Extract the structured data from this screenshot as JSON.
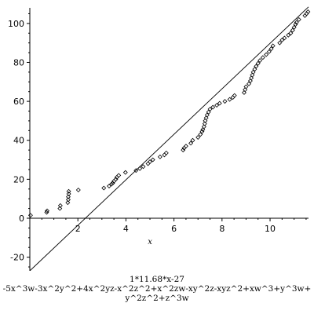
{
  "chart_data": {
    "type": "scatter",
    "xlabel": "x",
    "ylabel": "",
    "xlim": [
      0,
      11.6
    ],
    "ylim": [
      -27,
      108
    ],
    "x_ticks": [
      2,
      4,
      6,
      8,
      10
    ],
    "y_ticks": [
      -20,
      0,
      20,
      40,
      60,
      80,
      100
    ],
    "grid": false,
    "fit_line": {
      "slope": 11.68,
      "intercept": -27,
      "x_range": [
        0,
        11.6
      ]
    },
    "points": [
      [
        0.03,
        1.5
      ],
      [
        0.7,
        3.0
      ],
      [
        0.72,
        3.8
      ],
      [
        1.25,
        5.0
      ],
      [
        1.27,
        6.5
      ],
      [
        1.58,
        8.0
      ],
      [
        1.6,
        9.5
      ],
      [
        1.6,
        11.0
      ],
      [
        1.62,
        12.5
      ],
      [
        1.62,
        13.8
      ],
      [
        2.02,
        14.5
      ],
      [
        3.08,
        15.5
      ],
      [
        3.3,
        16.5
      ],
      [
        3.4,
        17.5
      ],
      [
        3.45,
        18.0
      ],
      [
        3.5,
        19.0
      ],
      [
        3.58,
        20.0
      ],
      [
        3.62,
        21.0
      ],
      [
        3.7,
        22.0
      ],
      [
        3.98,
        23.5
      ],
      [
        4.42,
        24.5
      ],
      [
        4.58,
        25.5
      ],
      [
        4.72,
        26.5
      ],
      [
        4.92,
        28.0
      ],
      [
        5.0,
        29.0
      ],
      [
        5.12,
        30.0
      ],
      [
        5.42,
        31.5
      ],
      [
        5.6,
        32.5
      ],
      [
        5.68,
        33.5
      ],
      [
        6.38,
        35.0
      ],
      [
        6.42,
        36.0
      ],
      [
        6.5,
        37.0
      ],
      [
        6.7,
        38.5
      ],
      [
        6.78,
        40.0
      ],
      [
        7.0,
        41.5
      ],
      [
        7.1,
        43.0
      ],
      [
        7.17,
        44.5
      ],
      [
        7.2,
        45.5
      ],
      [
        7.25,
        47.0
      ],
      [
        7.28,
        48.5
      ],
      [
        7.3,
        50.0
      ],
      [
        7.34,
        51.5
      ],
      [
        7.38,
        53.0
      ],
      [
        7.44,
        54.5
      ],
      [
        7.5,
        56.0
      ],
      [
        7.62,
        57.0
      ],
      [
        7.78,
        58.0
      ],
      [
        7.9,
        59.0
      ],
      [
        8.12,
        60.0
      ],
      [
        8.32,
        61.0
      ],
      [
        8.45,
        62.0
      ],
      [
        8.52,
        63.0
      ],
      [
        8.92,
        64.5
      ],
      [
        8.96,
        66.0
      ],
      [
        9.0,
        67.5
      ],
      [
        9.12,
        69.0
      ],
      [
        9.18,
        70.5
      ],
      [
        9.22,
        72.0
      ],
      [
        9.26,
        73.5
      ],
      [
        9.3,
        75.0
      ],
      [
        9.36,
        76.5
      ],
      [
        9.42,
        78.0
      ],
      [
        9.5,
        79.5
      ],
      [
        9.58,
        81.0
      ],
      [
        9.7,
        82.5
      ],
      [
        9.84,
        84.0
      ],
      [
        9.96,
        85.5
      ],
      [
        10.05,
        87.0
      ],
      [
        10.12,
        88.5
      ],
      [
        10.4,
        90.0
      ],
      [
        10.5,
        91.5
      ],
      [
        10.6,
        92.5
      ],
      [
        10.76,
        94.0
      ],
      [
        10.86,
        95.0
      ],
      [
        10.94,
        96.5
      ],
      [
        11.0,
        98.0
      ],
      [
        11.06,
        99.5
      ],
      [
        11.1,
        100.5
      ],
      [
        11.2,
        102.0
      ],
      [
        11.45,
        104.0
      ],
      [
        11.52,
        105.0
      ],
      [
        11.58,
        106.0
      ]
    ],
    "caption_lines": [
      "1*11.68*x-27",
      "-5x^3w-3x^2y^2+4x^2yz-x^2z^2+x^2zw-xy^2z-xyz^2+xw^3+y^3w+",
      "y^2z^2+z^3w"
    ]
  }
}
